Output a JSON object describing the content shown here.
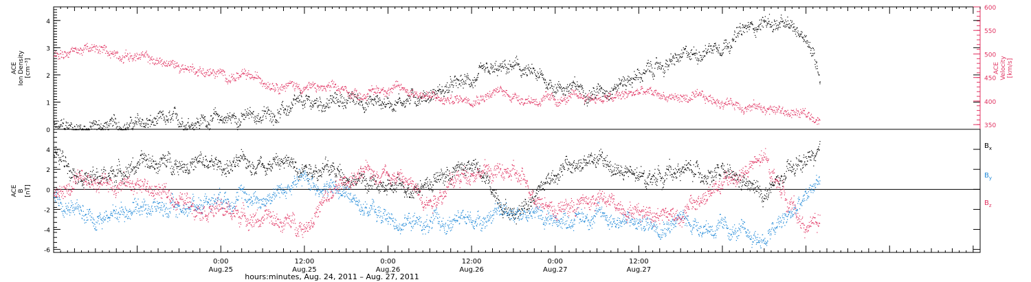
{
  "colors": {
    "black": "#000000",
    "pink": "#e0305f",
    "blue": "#1e88d8",
    "grid": "#000000",
    "axis_right_color": "#e0305f"
  },
  "chart_data": [
    {
      "id": "plasma",
      "type": "scatter",
      "left_axis": {
        "label_lines": [
          "ACE",
          "Ion Density",
          "[cm⁻³]"
        ],
        "ylim": [
          0,
          4.5
        ],
        "ticks": [
          0,
          1,
          2,
          3,
          4
        ],
        "tick_labels": [
          "0",
          "1",
          "2",
          "3",
          "4"
        ]
      },
      "right_axis": {
        "label_lines": [
          "ACE",
          "Velocity",
          "[km/s]"
        ],
        "ylim": [
          340,
          600
        ],
        "ticks": [
          350,
          400,
          450,
          500,
          550,
          600
        ],
        "tick_labels": [
          "350",
          "400",
          "450",
          "500",
          "550",
          "600"
        ]
      },
      "series": [
        {
          "axis": "left",
          "color": "black",
          "points": [
            [
              0.0,
              0.05
            ],
            [
              6.0,
              0.1
            ],
            [
              12.0,
              0.2
            ],
            [
              18.0,
              0.3
            ],
            [
              24.0,
              0.4
            ],
            [
              30.0,
              0.5
            ],
            [
              36.0,
              0.9
            ],
            [
              42.0,
              1.1
            ],
            [
              48.0,
              1.0
            ],
            [
              54.0,
              1.3
            ],
            [
              60.0,
              1.8
            ],
            [
              66.0,
              2.3
            ],
            [
              72.0,
              1.6
            ],
            [
              78.0,
              1.4
            ],
            [
              84.0,
              2.0
            ],
            [
              90.0,
              2.6
            ],
            [
              96.0,
              3.2
            ],
            [
              102.0,
              4.0
            ],
            [
              108.0,
              3.5
            ],
            [
              110.0,
              2.0
            ]
          ]
        },
        {
          "axis": "right",
          "color": "pink",
          "points": [
            [
              0.0,
              500.0
            ],
            [
              4.0,
              510.0
            ],
            [
              8.0,
              505.0
            ],
            [
              12.0,
              495.0
            ],
            [
              16.0,
              480.0
            ],
            [
              20.0,
              470.0
            ],
            [
              24.0,
              455.0
            ],
            [
              28.0,
              450.0
            ],
            [
              32.0,
              440.0
            ],
            [
              36.0,
              430.0
            ],
            [
              40.0,
              425.0
            ],
            [
              44.0,
              415.0
            ],
            [
              48.0,
              430.0
            ],
            [
              52.0,
              420.0
            ],
            [
              56.0,
              400.0
            ],
            [
              60.0,
              410.0
            ],
            [
              64.0,
              420.0
            ],
            [
              68.0,
              405.0
            ],
            [
              72.0,
              400.0
            ],
            [
              76.0,
              410.0
            ],
            [
              80.0,
              405.0
            ],
            [
              84.0,
              420.0
            ],
            [
              88.0,
              410.0
            ],
            [
              92.0,
              405.0
            ],
            [
              96.0,
              400.0
            ],
            [
              100.0,
              390.0
            ],
            [
              104.0,
              380.0
            ],
            [
              108.0,
              370.0
            ],
            [
              110.0,
              365.0
            ]
          ]
        }
      ]
    },
    {
      "id": "magnetic",
      "type": "scatter",
      "left_axis": {
        "label_lines": [
          "ACE",
          "B",
          "[nT]"
        ],
        "ylim": [
          -6.3,
          6.0
        ],
        "ticks": [
          -6,
          -4,
          -2,
          0,
          2,
          4
        ],
        "tick_labels": [
          "-6",
          "-4",
          "-2",
          "0",
          "2",
          "4"
        ]
      },
      "zero_line": true,
      "series": [
        {
          "name": "Bx",
          "color": "black",
          "points": [
            [
              0.0,
              3.5
            ],
            [
              6.0,
              1.0
            ],
            [
              12.0,
              2.5
            ],
            [
              18.0,
              2.8
            ],
            [
              24.0,
              2.3
            ],
            [
              30.0,
              2.8
            ],
            [
              36.0,
              2.5
            ],
            [
              42.0,
              1.5
            ],
            [
              48.0,
              0.0
            ],
            [
              54.0,
              0.8
            ],
            [
              60.0,
              2.5
            ],
            [
              66.0,
              -2.5
            ],
            [
              72.0,
              1.8
            ],
            [
              78.0,
              3.0
            ],
            [
              84.0,
              1.0
            ],
            [
              90.0,
              2.0
            ],
            [
              96.0,
              1.5
            ],
            [
              102.0,
              -0.5
            ],
            [
              108.0,
              3.0
            ],
            [
              110.0,
              3.5
            ]
          ]
        },
        {
          "name": "By",
          "color": "blue",
          "points": [
            [
              0.0,
              -1.0
            ],
            [
              6.0,
              -3.0
            ],
            [
              12.0,
              -1.5
            ],
            [
              18.0,
              -2.0
            ],
            [
              24.0,
              -0.5
            ],
            [
              30.0,
              -1.0
            ],
            [
              36.0,
              1.0
            ],
            [
              42.0,
              -0.5
            ],
            [
              48.0,
              -3.0
            ],
            [
              54.0,
              -3.5
            ],
            [
              60.0,
              -3.0
            ],
            [
              66.0,
              -2.0
            ],
            [
              72.0,
              -3.0
            ],
            [
              78.0,
              -2.5
            ],
            [
              84.0,
              -3.5
            ],
            [
              90.0,
              -3.0
            ],
            [
              96.0,
              -4.0
            ],
            [
              102.0,
              -5.0
            ],
            [
              108.0,
              -1.0
            ],
            [
              110.0,
              1.5
            ]
          ]
        },
        {
          "name": "Bz",
          "color": "pink",
          "points": [
            [
              0.0,
              -0.5
            ],
            [
              6.0,
              1.0
            ],
            [
              12.0,
              0.5
            ],
            [
              18.0,
              -1.0
            ],
            [
              24.0,
              -2.0
            ],
            [
              30.0,
              -3.0
            ],
            [
              36.0,
              -3.5
            ],
            [
              42.0,
              1.0
            ],
            [
              48.0,
              2.0
            ],
            [
              54.0,
              -1.0
            ],
            [
              60.0,
              2.0
            ],
            [
              66.0,
              1.5
            ],
            [
              72.0,
              -2.0
            ],
            [
              78.0,
              -1.0
            ],
            [
              84.0,
              -2.0
            ],
            [
              90.0,
              -2.5
            ],
            [
              96.0,
              0.5
            ],
            [
              102.0,
              3.0
            ],
            [
              108.0,
              -4.0
            ],
            [
              110.0,
              -3.0
            ]
          ]
        }
      ],
      "legend": [
        {
          "label": "B",
          "sub": "x",
          "color": "black"
        },
        {
          "label": "B",
          "sub": "y",
          "color": "blue"
        },
        {
          "label": "B",
          "sub": "z",
          "color": "pink"
        }
      ]
    }
  ],
  "x_axis": {
    "xlim": [
      0,
      133
    ],
    "major_ticks": [
      0,
      12,
      24,
      36,
      48,
      60,
      72,
      84,
      96,
      108,
      120,
      132
    ],
    "minor_step": 1,
    "labels": [
      {
        "x": 24,
        "time": "0:00",
        "date": "Aug.25"
      },
      {
        "x": 36,
        "time": "12:00",
        "date": "Aug.25"
      },
      {
        "x": 48,
        "time": "0:00",
        "date": "Aug.26"
      },
      {
        "x": 60,
        "time": "12:00",
        "date": "Aug.26"
      },
      {
        "x": 72,
        "time": "0:00",
        "date": "Aug.27"
      },
      {
        "x": 84,
        "time": "12:00",
        "date": "Aug.27"
      }
    ],
    "title": "hours:minutes, Aug. 24, 2011 – Aug. 27, 2011"
  }
}
